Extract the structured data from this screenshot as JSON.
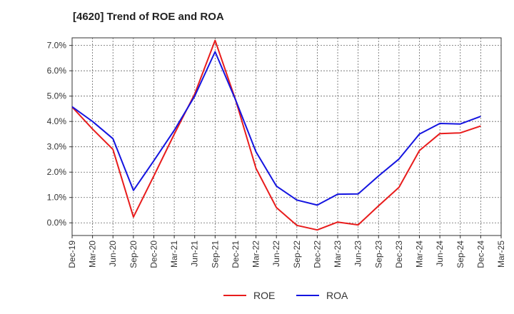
{
  "chart_data": {
    "type": "line",
    "title": "[4620]  Trend of ROE and ROA",
    "xlabel": "",
    "ylabel": "",
    "ylim": [
      -0.5,
      7.3
    ],
    "yticks": [
      0.0,
      1.0,
      2.0,
      3.0,
      4.0,
      5.0,
      6.0,
      7.0
    ],
    "ytick_labels": [
      "0.0%",
      "1.0%",
      "2.0%",
      "3.0%",
      "4.0%",
      "5.0%",
      "6.0%",
      "7.0%"
    ],
    "categories": [
      "Dec-19",
      "Mar-20",
      "Jun-20",
      "Sep-20",
      "Dec-20",
      "Mar-21",
      "Jun-21",
      "Sep-21",
      "Dec-21",
      "Mar-22",
      "Jun-22",
      "Sep-22",
      "Dec-22",
      "Mar-23",
      "Jun-23",
      "Sep-23",
      "Dec-23",
      "Mar-24",
      "Jun-24",
      "Sep-24",
      "Dec-24",
      "Mar-25"
    ],
    "grid": true,
    "legend_position": "bottom",
    "series": [
      {
        "name": "ROE",
        "color": "#e81c1c",
        "values": [
          4.57,
          3.7,
          2.9,
          0.23,
          1.85,
          3.5,
          5.08,
          7.2,
          4.85,
          2.15,
          0.6,
          -0.1,
          -0.28,
          0.03,
          -0.08,
          0.67,
          1.4,
          2.85,
          3.52,
          3.55,
          3.82,
          null
        ]
      },
      {
        "name": "ROA",
        "color": "#1414e0",
        "values": [
          4.58,
          4.0,
          3.32,
          1.28,
          2.45,
          3.65,
          5.0,
          6.75,
          4.85,
          2.8,
          1.45,
          0.9,
          0.7,
          1.13,
          1.14,
          1.85,
          2.52,
          3.5,
          3.92,
          3.9,
          4.2,
          null
        ]
      }
    ]
  }
}
